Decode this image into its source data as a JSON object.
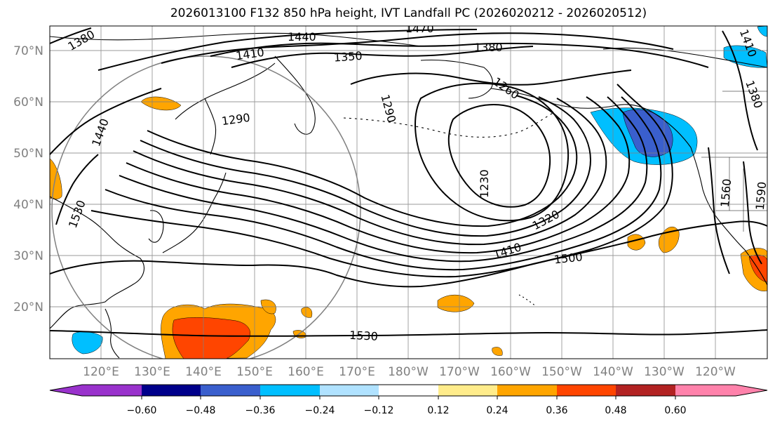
{
  "title": "2026013100 F132 850 hPa height, IVT Landfall PC (2026020212 - 2026020512)",
  "lat_labels": [
    "70°N",
    "60°N",
    "50°N",
    "40°N",
    "30°N",
    "20°N"
  ],
  "lon_labels": [
    "120°E",
    "130°E",
    "140°E",
    "150°E",
    "160°E",
    "170°E",
    "180°W",
    "170°W",
    "160°W",
    "150°W",
    "140°W",
    "130°W",
    "120°W"
  ],
  "colorbar": {
    "tick_labels": [
      "−0.60",
      "−0.48",
      "−0.36",
      "−0.24",
      "−0.12",
      "0.12",
      "0.24",
      "0.36",
      "0.48",
      "0.60"
    ],
    "colors": [
      "#9932cc",
      "#00008b",
      "#3a5fcd",
      "#00bfff",
      "#b0e2ff",
      "#ffffff",
      "#ffec8b",
      "#ffa500",
      "#ff4500",
      "#b22222",
      "#ff82ab"
    ]
  },
  "contour_labels": [
    "1380",
    "1440",
    "1470",
    "1410",
    "1350",
    "1380",
    "1290",
    "1260",
    "1290",
    "1380",
    "1440",
    "1410",
    "1230",
    "1530",
    "1320",
    "1410",
    "1500",
    "1560",
    "1590",
    "1530"
  ]
}
